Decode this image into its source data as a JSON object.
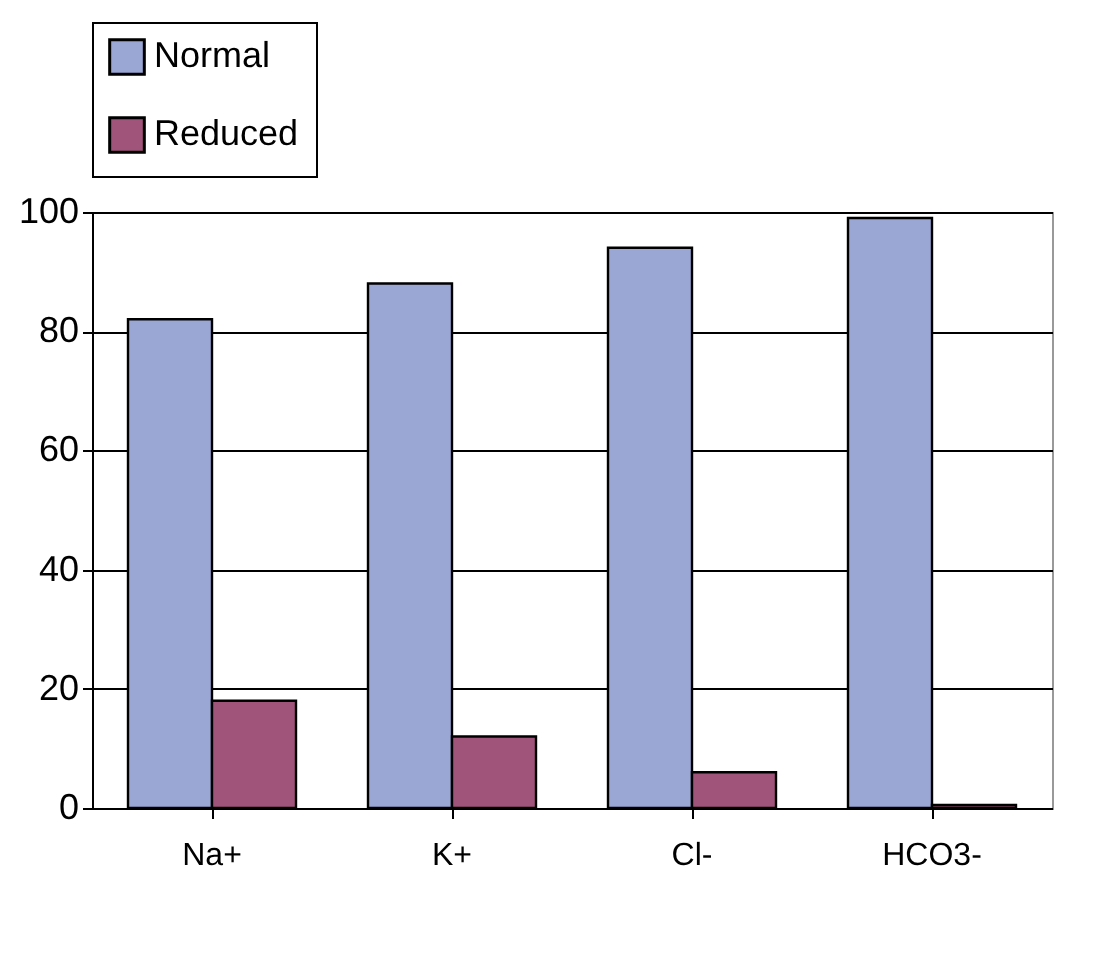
{
  "chart_data": {
    "type": "bar",
    "categories": [
      "Na+",
      "K+",
      "Cl-",
      "HCO3-"
    ],
    "series": [
      {
        "name": "Normal",
        "color": "#9aa6d4",
        "values": [
          82,
          88,
          94,
          99
        ]
      },
      {
        "name": "Reduced",
        "color": "#a0547a",
        "values": [
          18,
          12,
          6,
          0.5
        ]
      }
    ],
    "ylim": [
      0,
      100
    ],
    "yticks": [
      0,
      20,
      40,
      60,
      80,
      100
    ],
    "grid": "y",
    "legend": "top"
  }
}
